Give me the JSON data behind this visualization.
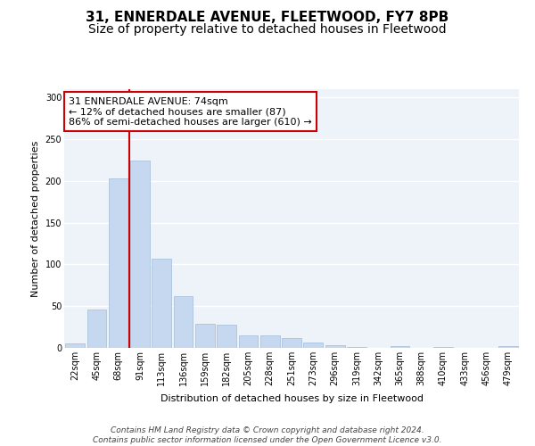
{
  "title": "31, ENNERDALE AVENUE, FLEETWOOD, FY7 8PB",
  "subtitle": "Size of property relative to detached houses in Fleetwood",
  "xlabel": "Distribution of detached houses by size in Fleetwood",
  "ylabel": "Number of detached properties",
  "bar_color": "#c5d8f0",
  "bar_edge_color": "#a0bcd8",
  "background_color": "#eef3fa",
  "grid_color": "#ffffff",
  "annotation_box_color": "#cc0000",
  "vline_color": "#cc0000",
  "bins": [
    "22sqm",
    "45sqm",
    "68sqm",
    "91sqm",
    "113sqm",
    "136sqm",
    "159sqm",
    "182sqm",
    "205sqm",
    "228sqm",
    "251sqm",
    "273sqm",
    "296sqm",
    "319sqm",
    "342sqm",
    "365sqm",
    "388sqm",
    "410sqm",
    "433sqm",
    "456sqm",
    "479sqm"
  ],
  "values": [
    5,
    46,
    203,
    225,
    107,
    62,
    29,
    28,
    15,
    15,
    12,
    6,
    3,
    1,
    0,
    2,
    0,
    1,
    0,
    0,
    2
  ],
  "ylim": [
    0,
    310
  ],
  "property_label": "31 ENNERDALE AVENUE: 74sqm",
  "annotation_line1": "← 12% of detached houses are smaller (87)",
  "annotation_line2": "86% of semi-detached houses are larger (610) →",
  "vline_bin_index": 2,
  "footer_line1": "Contains HM Land Registry data © Crown copyright and database right 2024.",
  "footer_line2": "Contains public sector information licensed under the Open Government Licence v3.0.",
  "title_fontsize": 11,
  "subtitle_fontsize": 10,
  "axis_label_fontsize": 8,
  "tick_fontsize": 7,
  "annotation_fontsize": 8,
  "footer_fontsize": 6.5
}
